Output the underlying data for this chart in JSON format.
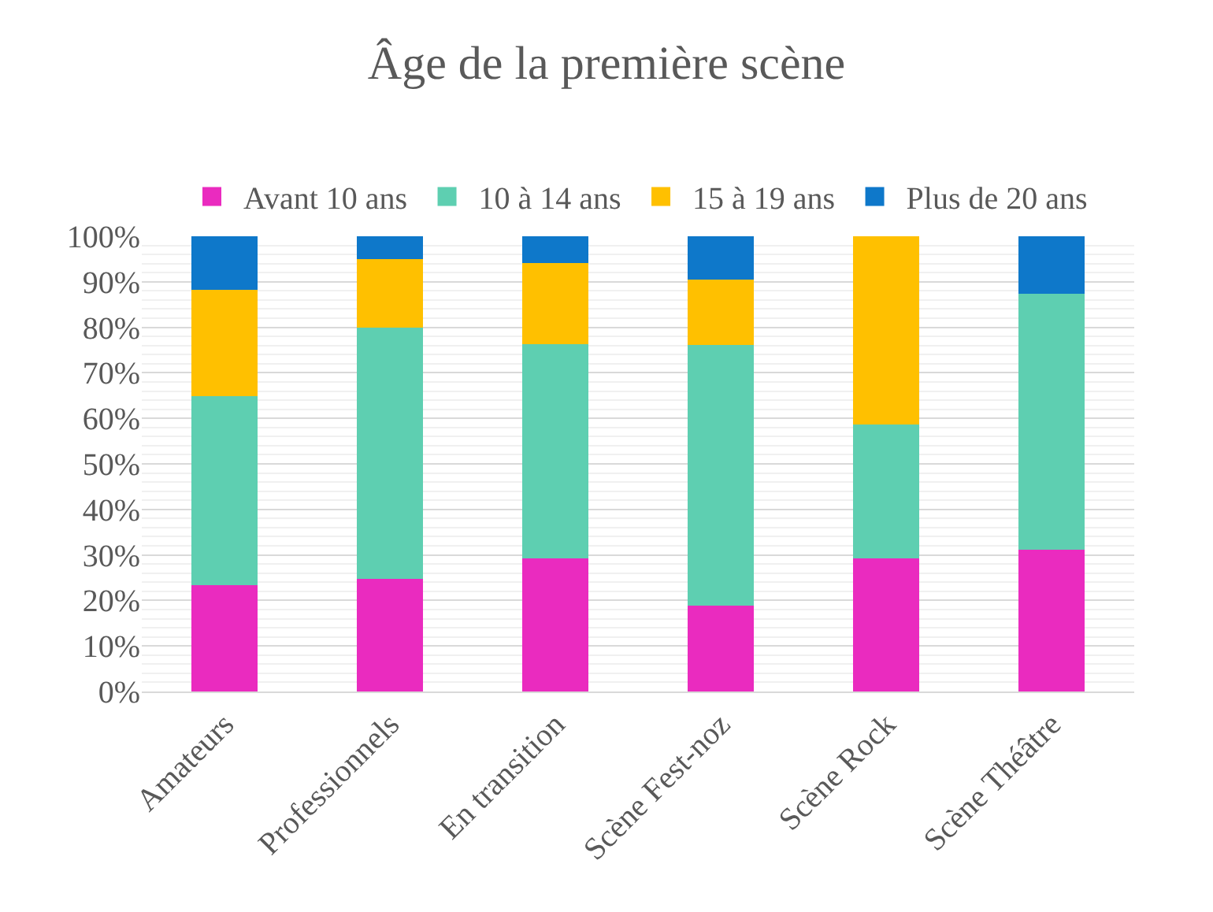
{
  "chart_data": {
    "type": "bar",
    "stacked": true,
    "title": "Âge de la première scène",
    "categories": [
      "Amateurs",
      "Professionnels",
      "En transition",
      "Scène Fest-noz",
      "Scène Rock",
      "Scène Théâtre"
    ],
    "series": [
      {
        "name": "Avant 10 ans",
        "color": "#ea2bbf",
        "values": [
          23.4,
          24.8,
          29.3,
          18.8,
          29.3,
          31.1
        ]
      },
      {
        "name": "10 à 14 ans",
        "color": "#5ecfb1",
        "values": [
          41.4,
          55.2,
          47.0,
          57.3,
          29.4,
          56.3
        ]
      },
      {
        "name": "15 à 19 ans",
        "color": "#ffc000",
        "values": [
          23.5,
          15.0,
          17.8,
          14.3,
          41.3,
          0
        ]
      },
      {
        "name": "Plus de 20 ans",
        "color": "#0e78ca",
        "values": [
          11.7,
          5.0,
          5.9,
          9.6,
          0,
          12.6
        ]
      }
    ],
    "ylim": [
      0,
      100
    ],
    "yticks": [
      {
        "value": 0,
        "label": "0%"
      },
      {
        "value": 10,
        "label": "10%"
      },
      {
        "value": 20,
        "label": "20%"
      },
      {
        "value": 30,
        "label": "30%"
      },
      {
        "value": 40,
        "label": "40%"
      },
      {
        "value": 50,
        "label": "50%"
      },
      {
        "value": 60,
        "label": "60%"
      },
      {
        "value": 70,
        "label": "70%"
      },
      {
        "value": 80,
        "label": "80%"
      },
      {
        "value": 90,
        "label": "90%"
      },
      {
        "value": 100,
        "label": "100%"
      }
    ],
    "grid": "y",
    "legend": "top"
  }
}
